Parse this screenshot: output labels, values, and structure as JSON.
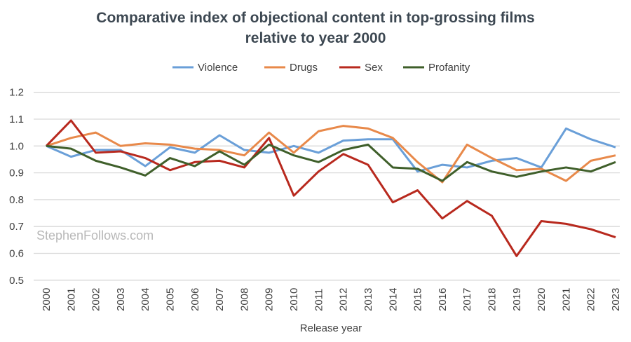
{
  "chart_data": {
    "type": "line",
    "title": "Comparative index of objectional content in top-grossing films relative to year 2000",
    "title_lines": [
      "Comparative index of objectional content in top-grossing films",
      "relative to year 2000"
    ],
    "xlabel": "Release year",
    "ylabel": "",
    "ylim": [
      0.5,
      1.2
    ],
    "yticks": [
      "0.5",
      "0.6",
      "0.7",
      "0.8",
      "0.9",
      "1.0",
      "1.1",
      "1.2"
    ],
    "grid": true,
    "legend_position": "top",
    "watermark": "StephenFollows.com",
    "x": [
      "2000",
      "2001",
      "2002",
      "2003",
      "2004",
      "2005",
      "2006",
      "2007",
      "2008",
      "2009",
      "2010",
      "2011",
      "2012",
      "2013",
      "2014",
      "2015",
      "2016",
      "2017",
      "2018",
      "2019",
      "2020",
      "2021",
      "2022",
      "2023"
    ],
    "series": [
      {
        "name": "Violence",
        "color": "#6a9fd8",
        "values": [
          1.0,
          0.96,
          0.985,
          0.985,
          0.925,
          0.995,
          0.975,
          1.04,
          0.985,
          0.975,
          1.0,
          0.975,
          1.02,
          1.025,
          1.025,
          0.905,
          0.93,
          0.92,
          0.945,
          0.955,
          0.92,
          1.065,
          1.025,
          0.995
        ]
      },
      {
        "name": "Drugs",
        "color": "#e8894a",
        "values": [
          1.0,
          1.03,
          1.05,
          1.0,
          1.01,
          1.005,
          0.99,
          0.985,
          0.965,
          1.05,
          0.975,
          1.055,
          1.075,
          1.065,
          1.03,
          0.94,
          0.865,
          1.005,
          0.955,
          0.91,
          0.915,
          0.87,
          0.945,
          0.965
        ]
      },
      {
        "name": "Sex",
        "color": "#b8291e",
        "values": [
          1.0,
          1.095,
          0.975,
          0.98,
          0.955,
          0.91,
          0.94,
          0.945,
          0.92,
          1.03,
          0.815,
          0.905,
          0.97,
          0.93,
          0.79,
          0.835,
          0.73,
          0.795,
          0.74,
          0.59,
          0.72,
          0.71,
          0.69,
          0.66
        ]
      },
      {
        "name": "Profanity",
        "color": "#3f5f2a",
        "values": [
          1.0,
          0.99,
          0.945,
          0.92,
          0.89,
          0.955,
          0.925,
          0.98,
          0.93,
          1.005,
          0.965,
          0.94,
          0.985,
          1.005,
          0.92,
          0.915,
          0.87,
          0.94,
          0.905,
          0.885,
          0.905,
          0.92,
          0.905,
          0.94
        ]
      }
    ]
  }
}
